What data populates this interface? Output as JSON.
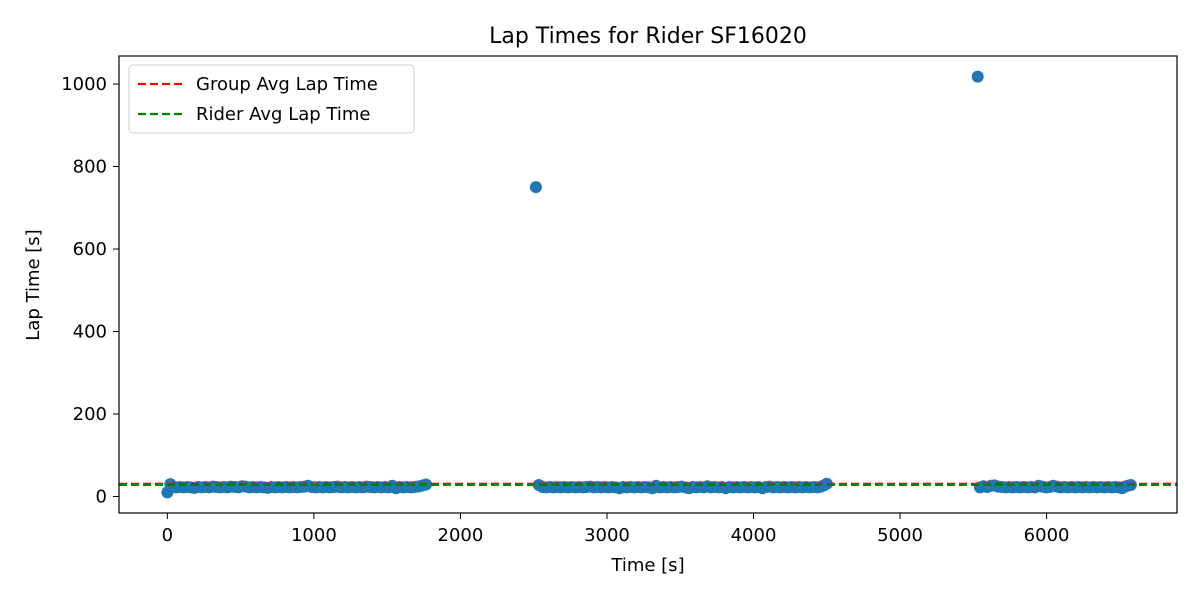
{
  "chart_data": {
    "type": "scatter",
    "title": "Lap Times for Rider SF16020",
    "xlabel": "Time [s]",
    "ylabel": "Lap Time [s]",
    "xlim": [
      -330,
      6890
    ],
    "ylim": [
      -40,
      1068
    ],
    "xticks": [
      0,
      1000,
      2000,
      3000,
      4000,
      5000,
      6000
    ],
    "yticks": [
      0,
      200,
      400,
      600,
      800,
      1000
    ],
    "grid": false,
    "legend_position": "upper-left",
    "colors": {
      "points": "#1f77b4",
      "group_avg": "#ff0000",
      "rider_avg": "#008000"
    },
    "reference_lines": [
      {
        "name": "Group Avg Lap Time",
        "y": 31,
        "color": "#ff0000",
        "style": "dashed"
      },
      {
        "name": "Rider Avg Lap Time",
        "y": 28,
        "color": "#008000",
        "style": "dashed"
      }
    ],
    "segments": [
      {
        "x_start": 0,
        "x_end": 1770,
        "y_typical": 22
      },
      {
        "x_start": 2530,
        "x_end": 4500,
        "y_typical": 22
      },
      {
        "x_start": 5540,
        "x_end": 6580,
        "y_typical": 22
      }
    ],
    "series": [
      {
        "points": [
          [
            0,
            10
          ],
          [
            20,
            30
          ],
          [
            40,
            24
          ],
          [
            60,
            22
          ],
          [
            85,
            23
          ],
          [
            110,
            22
          ],
          [
            135,
            23
          ],
          [
            160,
            22
          ],
          [
            185,
            21
          ],
          [
            210,
            23
          ],
          [
            235,
            22
          ],
          [
            260,
            23
          ],
          [
            285,
            22
          ],
          [
            310,
            24
          ],
          [
            335,
            23
          ],
          [
            360,
            22
          ],
          [
            385,
            23
          ],
          [
            410,
            22
          ],
          [
            435,
            24
          ],
          [
            460,
            23
          ],
          [
            485,
            22
          ],
          [
            510,
            25
          ],
          [
            535,
            24
          ],
          [
            560,
            22
          ],
          [
            585,
            23
          ],
          [
            610,
            22
          ],
          [
            635,
            23
          ],
          [
            660,
            22
          ],
          [
            685,
            21
          ],
          [
            710,
            23
          ],
          [
            735,
            22
          ],
          [
            760,
            23
          ],
          [
            785,
            22
          ],
          [
            810,
            23
          ],
          [
            835,
            22
          ],
          [
            860,
            23
          ],
          [
            885,
            22
          ],
          [
            910,
            23
          ],
          [
            935,
            24
          ],
          [
            960,
            26
          ],
          [
            985,
            23
          ],
          [
            1010,
            22
          ],
          [
            1035,
            23
          ],
          [
            1060,
            22
          ],
          [
            1085,
            23
          ],
          [
            1110,
            22
          ],
          [
            1135,
            23
          ],
          [
            1160,
            24
          ],
          [
            1185,
            22
          ],
          [
            1210,
            23
          ],
          [
            1235,
            22
          ],
          [
            1260,
            23
          ],
          [
            1285,
            22
          ],
          [
            1310,
            23
          ],
          [
            1335,
            22
          ],
          [
            1360,
            24
          ],
          [
            1385,
            23
          ],
          [
            1410,
            22
          ],
          [
            1435,
            23
          ],
          [
            1460,
            22
          ],
          [
            1485,
            23
          ],
          [
            1510,
            22
          ],
          [
            1535,
            26
          ],
          [
            1560,
            20
          ],
          [
            1585,
            23
          ],
          [
            1610,
            22
          ],
          [
            1635,
            23
          ],
          [
            1660,
            22
          ],
          [
            1685,
            23
          ],
          [
            1705,
            24
          ],
          [
            1725,
            25
          ],
          [
            1745,
            27
          ],
          [
            1765,
            29
          ],
          [
            2515,
            750
          ],
          [
            2535,
            28
          ],
          [
            2560,
            23
          ],
          [
            2585,
            22
          ],
          [
            2610,
            23
          ],
          [
            2635,
            22
          ],
          [
            2660,
            23
          ],
          [
            2685,
            22
          ],
          [
            2710,
            23
          ],
          [
            2735,
            22
          ],
          [
            2760,
            23
          ],
          [
            2785,
            22
          ],
          [
            2810,
            23
          ],
          [
            2835,
            22
          ],
          [
            2860,
            23
          ],
          [
            2885,
            24
          ],
          [
            2910,
            22
          ],
          [
            2935,
            23
          ],
          [
            2960,
            22
          ],
          [
            2985,
            23
          ],
          [
            3010,
            22
          ],
          [
            3035,
            23
          ],
          [
            3060,
            22
          ],
          [
            3085,
            20
          ],
          [
            3110,
            23
          ],
          [
            3135,
            22
          ],
          [
            3160,
            23
          ],
          [
            3185,
            22
          ],
          [
            3210,
            23
          ],
          [
            3235,
            22
          ],
          [
            3260,
            23
          ],
          [
            3285,
            22
          ],
          [
            3310,
            20
          ],
          [
            3335,
            26
          ],
          [
            3360,
            22
          ],
          [
            3385,
            23
          ],
          [
            3410,
            22
          ],
          [
            3435,
            23
          ],
          [
            3460,
            22
          ],
          [
            3485,
            23
          ],
          [
            3510,
            24
          ],
          [
            3535,
            22
          ],
          [
            3560,
            20
          ],
          [
            3585,
            23
          ],
          [
            3610,
            22
          ],
          [
            3635,
            23
          ],
          [
            3660,
            22
          ],
          [
            3685,
            25
          ],
          [
            3710,
            22
          ],
          [
            3735,
            23
          ],
          [
            3760,
            22
          ],
          [
            3785,
            23
          ],
          [
            3810,
            20
          ],
          [
            3835,
            23
          ],
          [
            3860,
            22
          ],
          [
            3885,
            23
          ],
          [
            3910,
            22
          ],
          [
            3935,
            23
          ],
          [
            3960,
            22
          ],
          [
            3985,
            23
          ],
          [
            4010,
            22
          ],
          [
            4035,
            23
          ],
          [
            4060,
            20
          ],
          [
            4085,
            23
          ],
          [
            4110,
            24
          ],
          [
            4135,
            22
          ],
          [
            4160,
            23
          ],
          [
            4185,
            22
          ],
          [
            4210,
            23
          ],
          [
            4235,
            22
          ],
          [
            4260,
            23
          ],
          [
            4285,
            22
          ],
          [
            4310,
            23
          ],
          [
            4335,
            22
          ],
          [
            4360,
            23
          ],
          [
            4385,
            22
          ],
          [
            4410,
            23
          ],
          [
            4435,
            22
          ],
          [
            4460,
            24
          ],
          [
            4480,
            27
          ],
          [
            4500,
            31
          ],
          [
            5530,
            1018
          ],
          [
            5545,
            22
          ],
          [
            5570,
            25
          ],
          [
            5595,
            23
          ],
          [
            5620,
            26
          ],
          [
            5645,
            27
          ],
          [
            5670,
            24
          ],
          [
            5695,
            23
          ],
          [
            5720,
            22
          ],
          [
            5745,
            23
          ],
          [
            5770,
            22
          ],
          [
            5795,
            23
          ],
          [
            5820,
            22
          ],
          [
            5845,
            23
          ],
          [
            5870,
            22
          ],
          [
            5895,
            23
          ],
          [
            5920,
            22
          ],
          [
            5945,
            26
          ],
          [
            5970,
            24
          ],
          [
            5995,
            22
          ],
          [
            6020,
            23
          ],
          [
            6045,
            26
          ],
          [
            6070,
            24
          ],
          [
            6095,
            22
          ],
          [
            6120,
            23
          ],
          [
            6145,
            22
          ],
          [
            6170,
            23
          ],
          [
            6195,
            22
          ],
          [
            6220,
            23
          ],
          [
            6245,
            22
          ],
          [
            6270,
            23
          ],
          [
            6295,
            22
          ],
          [
            6320,
            23
          ],
          [
            6345,
            22
          ],
          [
            6370,
            23
          ],
          [
            6395,
            22
          ],
          [
            6420,
            23
          ],
          [
            6445,
            22
          ],
          [
            6470,
            23
          ],
          [
            6495,
            22
          ],
          [
            6515,
            20
          ],
          [
            6535,
            24
          ],
          [
            6555,
            26
          ],
          [
            6575,
            28
          ]
        ]
      }
    ]
  }
}
